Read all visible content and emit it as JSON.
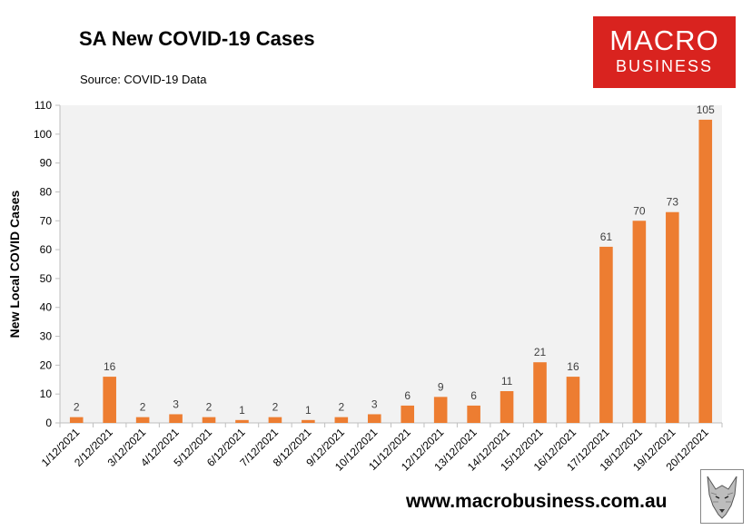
{
  "header": {
    "title": "SA New COVID-19 Cases",
    "source": "Source: COVID-19 Data"
  },
  "logo": {
    "line1": "MACRO",
    "line2": "BUSINESS",
    "color": "#d9231f"
  },
  "footer": {
    "website": "www.macrobusiness.com.au"
  },
  "chart_data": {
    "type": "bar",
    "title": "SA New COVID-19 Cases",
    "xlabel": "",
    "ylabel": "New Local COVID Cases",
    "ylim": [
      0,
      110
    ],
    "yticks": [
      0,
      10,
      20,
      30,
      40,
      50,
      60,
      70,
      80,
      90,
      100,
      110
    ],
    "grid": false,
    "legend": "none",
    "bar_color": "#ed7d31",
    "plot_background": "#f2f2f2",
    "categories": [
      "1/12/2021",
      "2/12/2021",
      "3/12/2021",
      "4/12/2021",
      "5/12/2021",
      "6/12/2021",
      "7/12/2021",
      "8/12/2021",
      "9/12/2021",
      "10/12/2021",
      "11/12/2021",
      "12/12/2021",
      "13/12/2021",
      "14/12/2021",
      "15/12/2021",
      "16/12/2021",
      "17/12/2021",
      "18/12/2021",
      "19/12/2021",
      "20/12/2021"
    ],
    "values": [
      2,
      16,
      2,
      3,
      2,
      1,
      2,
      1,
      2,
      3,
      6,
      9,
      6,
      11,
      21,
      16,
      61,
      70,
      73,
      105
    ],
    "data_labels": [
      "2",
      "16",
      "2",
      "3",
      "2",
      "1",
      "2",
      "1",
      "2",
      "3",
      "6",
      "9",
      "6",
      "11",
      "21",
      "16",
      "61",
      "70",
      "73",
      "105"
    ]
  }
}
